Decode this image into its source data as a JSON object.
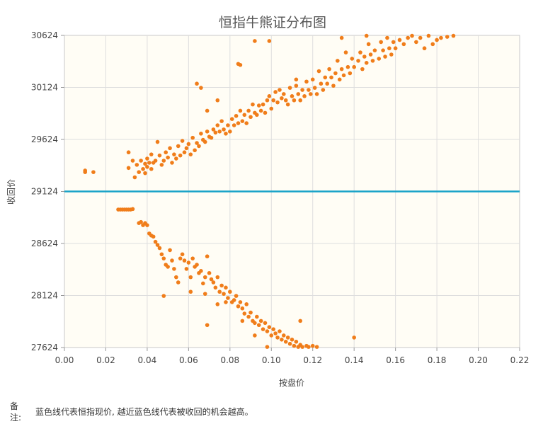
{
  "chart_data": {
    "type": "scatter",
    "title": "恒指牛熊证分布图",
    "xlabel": "按盘价",
    "ylabel": "收回价",
    "xlim": [
      0,
      0.22
    ],
    "ylim": [
      27624,
      30624
    ],
    "x_ticks": [
      "0.00",
      "0.02",
      "0.04",
      "0.06",
      "0.08",
      "0.10",
      "0.12",
      "0.14",
      "0.16",
      "0.18",
      "0.20",
      "0.22"
    ],
    "y_ticks": [
      "27624",
      "28124",
      "28624",
      "29124",
      "29624",
      "30124",
      "30624"
    ],
    "grid": true,
    "reference_line": {
      "y": 29124,
      "color": "#1aa3c8"
    },
    "series_color": "#f07d1a",
    "plot_background": "#fffdf5",
    "series": [
      {
        "points": [
          [
            0.01,
            29310
          ],
          [
            0.01,
            29325
          ],
          [
            0.014,
            29310
          ],
          [
            0.031,
            29500
          ],
          [
            0.031,
            29350
          ],
          [
            0.033,
            29420
          ],
          [
            0.034,
            29260
          ],
          [
            0.035,
            29380
          ],
          [
            0.036,
            29310
          ],
          [
            0.037,
            29420
          ],
          [
            0.038,
            29340
          ],
          [
            0.039,
            29300
          ],
          [
            0.039,
            29390
          ],
          [
            0.04,
            29440
          ],
          [
            0.04,
            29360
          ],
          [
            0.041,
            29400
          ],
          [
            0.042,
            29480
          ],
          [
            0.042,
            29340
          ],
          [
            0.043,
            29400
          ],
          [
            0.044,
            29420
          ],
          [
            0.045,
            29600
          ],
          [
            0.046,
            29470
          ],
          [
            0.047,
            29380
          ],
          [
            0.048,
            29420
          ],
          [
            0.049,
            29500
          ],
          [
            0.05,
            29450
          ],
          [
            0.051,
            29540
          ],
          [
            0.052,
            29400
          ],
          [
            0.053,
            29480
          ],
          [
            0.054,
            29440
          ],
          [
            0.055,
            29560
          ],
          [
            0.056,
            29470
          ],
          [
            0.057,
            29610
          ],
          [
            0.058,
            29500
          ],
          [
            0.059,
            29540
          ],
          [
            0.06,
            29580
          ],
          [
            0.061,
            29480
          ],
          [
            0.062,
            29640
          ],
          [
            0.063,
            29520
          ],
          [
            0.064,
            29590
          ],
          [
            0.065,
            29560
          ],
          [
            0.066,
            29680
          ],
          [
            0.067,
            29620
          ],
          [
            0.068,
            29600
          ],
          [
            0.069,
            29700
          ],
          [
            0.07,
            29650
          ],
          [
            0.071,
            29640
          ],
          [
            0.072,
            29720
          ],
          [
            0.073,
            29690
          ],
          [
            0.074,
            29760
          ],
          [
            0.075,
            29700
          ],
          [
            0.076,
            29800
          ],
          [
            0.077,
            29720
          ],
          [
            0.078,
            29680
          ],
          [
            0.079,
            29760
          ],
          [
            0.08,
            29700
          ],
          [
            0.081,
            29820
          ],
          [
            0.082,
            29760
          ],
          [
            0.083,
            29850
          ],
          [
            0.084,
            29780
          ],
          [
            0.085,
            29900
          ],
          [
            0.086,
            29800
          ],
          [
            0.087,
            29860
          ],
          [
            0.088,
            29780
          ],
          [
            0.089,
            29900
          ],
          [
            0.09,
            29840
          ],
          [
            0.091,
            29960
          ],
          [
            0.092,
            29880
          ],
          [
            0.093,
            29860
          ],
          [
            0.094,
            29950
          ],
          [
            0.095,
            29900
          ],
          [
            0.096,
            29960
          ],
          [
            0.097,
            29880
          ],
          [
            0.098,
            30000
          ],
          [
            0.099,
            30040
          ],
          [
            0.1,
            29920
          ],
          [
            0.101,
            30000
          ],
          [
            0.102,
            30080
          ],
          [
            0.103,
            29980
          ],
          [
            0.104,
            30100
          ],
          [
            0.105,
            30020
          ],
          [
            0.106,
            30060
          ],
          [
            0.107,
            30000
          ],
          [
            0.108,
            29960
          ],
          [
            0.109,
            30120
          ],
          [
            0.11,
            30040
          ],
          [
            0.111,
            30000
          ],
          [
            0.112,
            30140
          ],
          [
            0.113,
            30060
          ],
          [
            0.114,
            30000
          ],
          [
            0.115,
            30100
          ],
          [
            0.116,
            30040
          ],
          [
            0.117,
            30180
          ],
          [
            0.118,
            30100
          ],
          [
            0.119,
            30060
          ],
          [
            0.12,
            30200
          ],
          [
            0.121,
            30120
          ],
          [
            0.122,
            30060
          ],
          [
            0.123,
            30280
          ],
          [
            0.124,
            30160
          ],
          [
            0.125,
            30100
          ],
          [
            0.126,
            30220
          ],
          [
            0.127,
            30160
          ],
          [
            0.128,
            30300
          ],
          [
            0.129,
            30220
          ],
          [
            0.13,
            30140
          ],
          [
            0.131,
            30260
          ],
          [
            0.132,
            30380
          ],
          [
            0.133,
            30200
          ],
          [
            0.134,
            30300
          ],
          [
            0.135,
            30240
          ],
          [
            0.136,
            30460
          ],
          [
            0.137,
            30320
          ],
          [
            0.138,
            30260
          ],
          [
            0.139,
            30400
          ],
          [
            0.14,
            30320
          ],
          [
            0.142,
            30380
          ],
          [
            0.143,
            30460
          ],
          [
            0.144,
            30300
          ],
          [
            0.145,
            30420
          ],
          [
            0.146,
            30360
          ],
          [
            0.147,
            30540
          ],
          [
            0.148,
            30440
          ],
          [
            0.149,
            30380
          ],
          [
            0.15,
            30480
          ],
          [
            0.152,
            30400
          ],
          [
            0.153,
            30560
          ],
          [
            0.154,
            30480
          ],
          [
            0.155,
            30420
          ],
          [
            0.156,
            30600
          ],
          [
            0.157,
            30500
          ],
          [
            0.158,
            30440
          ],
          [
            0.159,
            30560
          ],
          [
            0.16,
            30500
          ],
          [
            0.162,
            30580
          ],
          [
            0.164,
            30540
          ],
          [
            0.166,
            30600
          ],
          [
            0.168,
            30620
          ],
          [
            0.17,
            30560
          ],
          [
            0.172,
            30600
          ],
          [
            0.174,
            30500
          ],
          [
            0.176,
            30620
          ],
          [
            0.178,
            30540
          ],
          [
            0.18,
            30580
          ],
          [
            0.182,
            30600
          ],
          [
            0.185,
            30610
          ],
          [
            0.188,
            30620
          ],
          [
            0.064,
            30160
          ],
          [
            0.066,
            30120
          ],
          [
            0.069,
            29900
          ],
          [
            0.074,
            30000
          ],
          [
            0.084,
            30350
          ],
          [
            0.085,
            30340
          ],
          [
            0.092,
            30570
          ],
          [
            0.099,
            30570
          ],
          [
            0.112,
            30200
          ],
          [
            0.134,
            30600
          ],
          [
            0.146,
            30620
          ],
          [
            0.026,
            28950
          ],
          [
            0.027,
            28950
          ],
          [
            0.028,
            28950
          ],
          [
            0.029,
            28950
          ],
          [
            0.03,
            28950
          ],
          [
            0.031,
            28950
          ],
          [
            0.032,
            28950
          ],
          [
            0.033,
            28955
          ],
          [
            0.036,
            28820
          ],
          [
            0.037,
            28830
          ],
          [
            0.038,
            28800
          ],
          [
            0.039,
            28820
          ],
          [
            0.04,
            28800
          ],
          [
            0.041,
            28720
          ],
          [
            0.042,
            28700
          ],
          [
            0.043,
            28690
          ],
          [
            0.044,
            28640
          ],
          [
            0.045,
            28610
          ],
          [
            0.046,
            28580
          ],
          [
            0.047,
            28520
          ],
          [
            0.048,
            28480
          ],
          [
            0.049,
            28420
          ],
          [
            0.05,
            28400
          ],
          [
            0.051,
            28560
          ],
          [
            0.052,
            28460
          ],
          [
            0.053,
            28380
          ],
          [
            0.054,
            28300
          ],
          [
            0.055,
            28250
          ],
          [
            0.056,
            28480
          ],
          [
            0.057,
            28520
          ],
          [
            0.058,
            28460
          ],
          [
            0.059,
            28380
          ],
          [
            0.06,
            28440
          ],
          [
            0.061,
            28300
          ],
          [
            0.062,
            28480
          ],
          [
            0.063,
            28400
          ],
          [
            0.064,
            28420
          ],
          [
            0.065,
            28340
          ],
          [
            0.066,
            28360
          ],
          [
            0.067,
            28240
          ],
          [
            0.068,
            28300
          ],
          [
            0.069,
            28500
          ],
          [
            0.07,
            28340
          ],
          [
            0.071,
            28280
          ],
          [
            0.072,
            28250
          ],
          [
            0.073,
            28200
          ],
          [
            0.074,
            28300
          ],
          [
            0.075,
            28160
          ],
          [
            0.076,
            28220
          ],
          [
            0.077,
            28140
          ],
          [
            0.078,
            28200
          ],
          [
            0.079,
            28100
          ],
          [
            0.08,
            28160
          ],
          [
            0.081,
            28060
          ],
          [
            0.082,
            28080
          ],
          [
            0.083,
            28120
          ],
          [
            0.084,
            28020
          ],
          [
            0.085,
            28060
          ],
          [
            0.086,
            28000
          ],
          [
            0.087,
            27950
          ],
          [
            0.088,
            28040
          ],
          [
            0.089,
            27920
          ],
          [
            0.09,
            27960
          ],
          [
            0.091,
            27880
          ],
          [
            0.092,
            27860
          ],
          [
            0.093,
            27920
          ],
          [
            0.094,
            27840
          ],
          [
            0.095,
            27880
          ],
          [
            0.096,
            27800
          ],
          [
            0.097,
            27860
          ],
          [
            0.098,
            27780
          ],
          [
            0.099,
            27820
          ],
          [
            0.1,
            27740
          ],
          [
            0.101,
            27800
          ],
          [
            0.102,
            27760
          ],
          [
            0.103,
            27720
          ],
          [
            0.104,
            27780
          ],
          [
            0.105,
            27700
          ],
          [
            0.106,
            27740
          ],
          [
            0.107,
            27680
          ],
          [
            0.108,
            27720
          ],
          [
            0.109,
            27660
          ],
          [
            0.11,
            27700
          ],
          [
            0.111,
            27640
          ],
          [
            0.112,
            27680
          ],
          [
            0.113,
            27630
          ],
          [
            0.114,
            27650
          ],
          [
            0.115,
            27630
          ],
          [
            0.117,
            27640
          ],
          [
            0.118,
            27630
          ],
          [
            0.12,
            27640
          ],
          [
            0.122,
            27630
          ],
          [
            0.048,
            28120
          ],
          [
            0.061,
            28160
          ],
          [
            0.068,
            28140
          ],
          [
            0.069,
            27840
          ],
          [
            0.074,
            28040
          ],
          [
            0.078,
            28060
          ],
          [
            0.086,
            27880
          ],
          [
            0.092,
            27740
          ],
          [
            0.098,
            27630
          ],
          [
            0.114,
            27880
          ],
          [
            0.14,
            27720
          ]
        ]
      }
    ]
  },
  "note": {
    "label": "备\n注:",
    "text": "蓝色线代表恒指现价, 越近蓝色线代表被收回的机会越高。"
  }
}
